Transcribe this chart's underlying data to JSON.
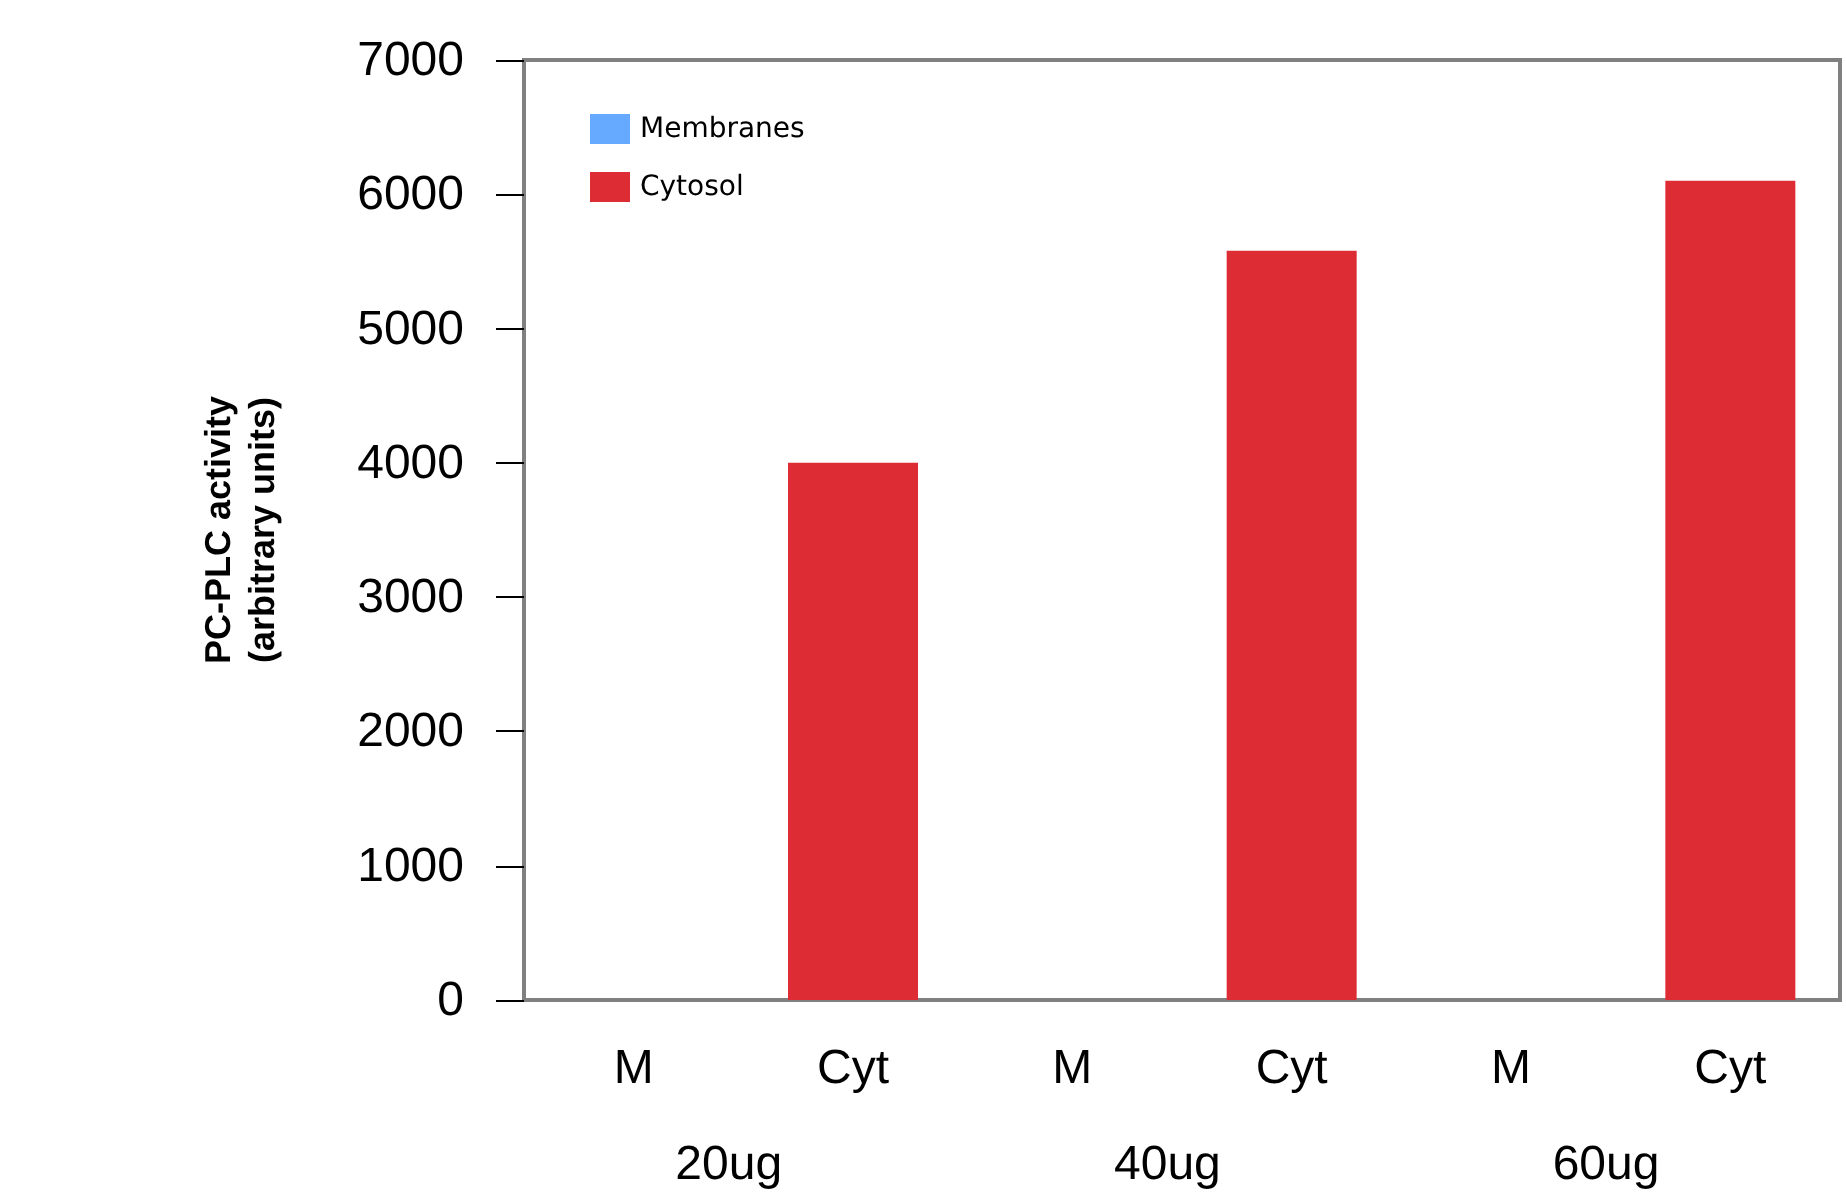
{
  "chart_data": {
    "type": "bar",
    "ylabel": "PC-PLC activity\n(arbitrary units)",
    "categories": [
      "M",
      "Cyt",
      "M",
      "Cyt",
      "M",
      "Cyt"
    ],
    "series": [
      {
        "name": "Membranes",
        "color": "#66aaff",
        "values": [
          0,
          null,
          0,
          null,
          0,
          null
        ]
      },
      {
        "name": "Cytosol",
        "color": "#dd2c33",
        "values": [
          null,
          4000,
          null,
          5580,
          null,
          6100
        ]
      }
    ],
    "ylim": [
      0,
      7000
    ],
    "yticks": [
      0,
      1000,
      2000,
      3000,
      4000,
      5000,
      6000,
      7000
    ],
    "grid": false,
    "legend": "top left",
    "annotations": [
      "20ug",
      "40ug",
      "60ug"
    ]
  }
}
